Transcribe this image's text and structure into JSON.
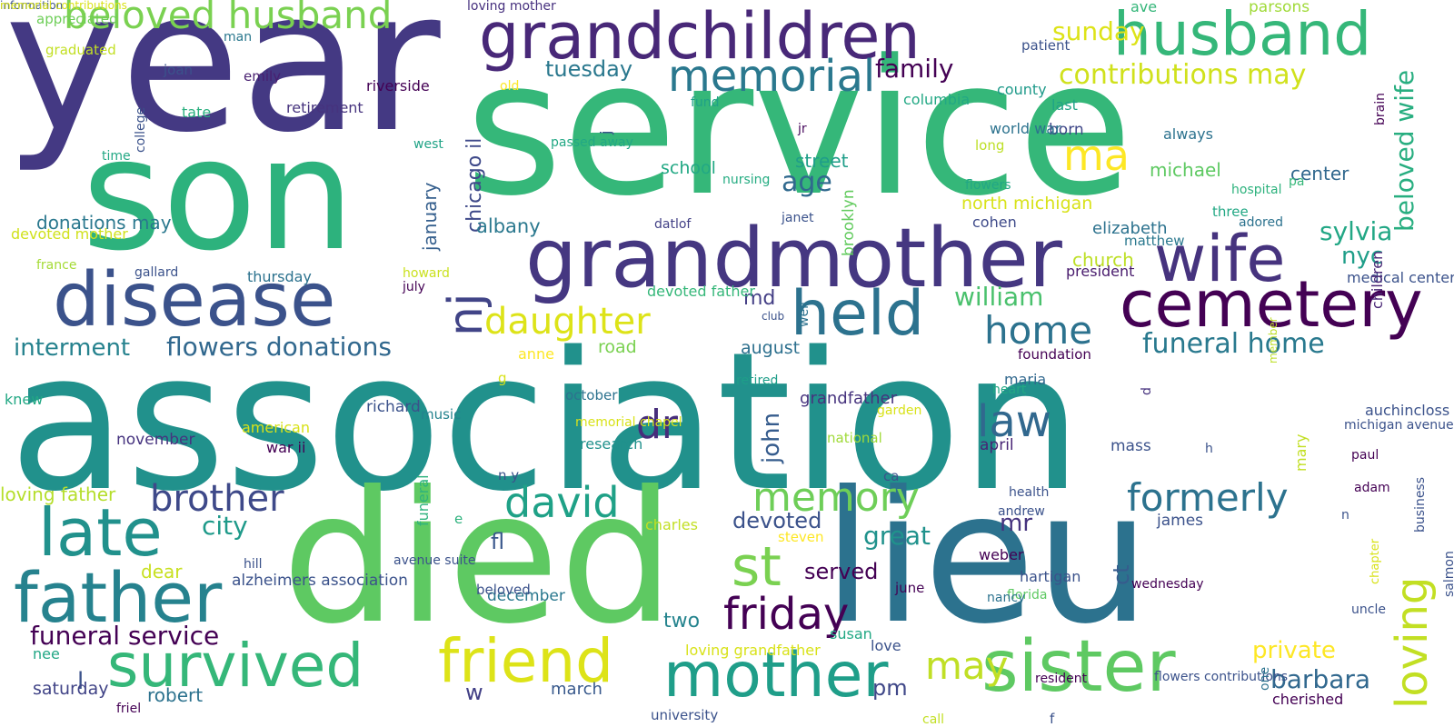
{
  "title": "Word cloud",
  "words": [
    {
      "text": "year",
      "color": "#443983"
    },
    {
      "text": "service",
      "color": "#35b779"
    },
    {
      "text": "association",
      "color": "#21918c"
    },
    {
      "text": "son",
      "color": "#2db27d"
    },
    {
      "text": "died",
      "color": "#5ec962"
    },
    {
      "text": "lieu",
      "color": "#2c728e"
    },
    {
      "text": "grandchildren",
      "color": "#482878"
    },
    {
      "text": "husband",
      "color": "#35b779"
    },
    {
      "text": "grandmother",
      "color": "#453781"
    },
    {
      "text": "disease",
      "color": "#3b528b"
    },
    {
      "text": "wife",
      "color": "#46337e"
    },
    {
      "text": "cemetery",
      "color": "#440154"
    },
    {
      "text": "held",
      "color": "#2c728e"
    },
    {
      "text": "nj",
      "color": "#414487"
    },
    {
      "text": "beloved husband",
      "color": "#7ad151"
    },
    {
      "text": "memorial",
      "color": "#2a788e"
    },
    {
      "text": "contributions may",
      "color": "#d0e11c"
    },
    {
      "text": "beloved wife",
      "color": "#28ae80"
    },
    {
      "text": "daughter",
      "color": "#dde318"
    },
    {
      "text": "late",
      "color": "#21918c"
    },
    {
      "text": "father",
      "color": "#26828e"
    },
    {
      "text": "survived",
      "color": "#35b779"
    },
    {
      "text": "friend",
      "color": "#dde318"
    },
    {
      "text": "mother",
      "color": "#1f9e89"
    },
    {
      "text": "sister",
      "color": "#5ec962"
    },
    {
      "text": "loving",
      "color": "#c2df23"
    },
    {
      "text": "david",
      "color": "#1fa187"
    },
    {
      "text": "brother",
      "color": "#3e4989"
    },
    {
      "text": "memory",
      "color": "#6ece58"
    },
    {
      "text": "formerly",
      "color": "#2c728e"
    },
    {
      "text": "law",
      "color": "#31688e"
    },
    {
      "text": "home",
      "color": "#2c728e"
    },
    {
      "text": "ma",
      "color": "#fde725"
    },
    {
      "text": "st",
      "color": "#7ad151"
    },
    {
      "text": "friday",
      "color": "#440154"
    },
    {
      "text": "may",
      "color": "#c0df25"
    },
    {
      "text": "dr",
      "color": "#472d7b"
    },
    {
      "text": "funeral home",
      "color": "#29798e"
    },
    {
      "text": "william",
      "color": "#4ac16d"
    },
    {
      "text": "flowers donations",
      "color": "#31688e"
    },
    {
      "text": "interment",
      "color": "#26828e"
    },
    {
      "text": "funeral service",
      "color": "#440154"
    },
    {
      "text": "family",
      "color": "#440154"
    },
    {
      "text": "tuesday",
      "color": "#2a788e"
    },
    {
      "text": "sunday",
      "color": "#dde318"
    },
    {
      "text": "chicago il",
      "color": "#3e4989"
    },
    {
      "text": "january",
      "color": "#355f8d"
    },
    {
      "text": "john",
      "color": "#365c8d"
    },
    {
      "text": "sylvia",
      "color": "#22a785"
    },
    {
      "text": "nyc",
      "color": "#1f9e89"
    },
    {
      "text": "age",
      "color": "#30698e"
    },
    {
      "text": "street",
      "color": "#1f9e89"
    },
    {
      "text": "michael",
      "color": "#5ec962"
    },
    {
      "text": "center",
      "color": "#31688e"
    },
    {
      "text": "church",
      "color": "#bddf26"
    },
    {
      "text": "elizabeth",
      "color": "#2c728e"
    },
    {
      "text": "md",
      "color": "#433e85"
    },
    {
      "text": "mr",
      "color": "#46337f"
    },
    {
      "text": "city",
      "color": "#1f9a8a"
    },
    {
      "text": "fl",
      "color": "#39568c"
    },
    {
      "text": "great",
      "color": "#20928c"
    },
    {
      "text": "devoted",
      "color": "#3b528b"
    },
    {
      "text": "served",
      "color": "#440154"
    },
    {
      "text": "ct",
      "color": "#365c8d"
    },
    {
      "text": "two",
      "color": "#25848e"
    },
    {
      "text": "l",
      "color": "#3b528b"
    },
    {
      "text": "w",
      "color": "#424086"
    },
    {
      "text": "pm",
      "color": "#3f4788"
    },
    {
      "text": "barbara",
      "color": "#31688e"
    },
    {
      "text": "private",
      "color": "#fde725"
    },
    {
      "text": "dear",
      "color": "#c8e020"
    },
    {
      "text": "robert",
      "color": "#2c728e"
    },
    {
      "text": "loving father",
      "color": "#b5de2b"
    },
    {
      "text": "alzheimers association",
      "color": "#3b528b"
    },
    {
      "text": "donations may",
      "color": "#2a788e"
    },
    {
      "text": "albany",
      "color": "#2a788e"
    },
    {
      "text": "school",
      "color": "#22a884"
    },
    {
      "text": "road",
      "color": "#7ad151"
    },
    {
      "text": "august",
      "color": "#2d708e"
    },
    {
      "text": "november",
      "color": "#46337f"
    },
    {
      "text": "grandfather",
      "color": "#46337e"
    },
    {
      "text": "saturday",
      "color": "#414487"
    },
    {
      "text": "nee",
      "color": "#22a785"
    },
    {
      "text": "march",
      "color": "#38598c"
    },
    {
      "text": "december",
      "color": "#2a788e"
    },
    {
      "text": "mass",
      "color": "#3b528b"
    },
    {
      "text": "april",
      "color": "#482475"
    },
    {
      "text": "james",
      "color": "#3b528b"
    },
    {
      "text": "president",
      "color": "#481b6d"
    },
    {
      "text": "foundation",
      "color": "#440154"
    },
    {
      "text": "thursday",
      "color": "#2c728e"
    },
    {
      "text": "devoted mother",
      "color": "#d0e11c"
    },
    {
      "text": "devoted father",
      "color": "#35b779"
    },
    {
      "text": "north michigan",
      "color": "#d8e219"
    },
    {
      "text": "brooklyn",
      "color": "#63cb5f"
    },
    {
      "text": "last",
      "color": "#20a386"
    },
    {
      "text": "born",
      "color": "#3f4788"
    },
    {
      "text": "cohen",
      "color": "#3e4a89"
    },
    {
      "text": "matthew",
      "color": "#2a788e"
    },
    {
      "text": "medical center",
      "color": "#3b528b"
    },
    {
      "text": "children",
      "color": "#482575"
    },
    {
      "text": "parsons",
      "color": "#a0da39"
    },
    {
      "text": "ave",
      "color": "#34b679"
    },
    {
      "text": "loving mother",
      "color": "#46307e"
    },
    {
      "text": "appreciated",
      "color": "#6ece58"
    },
    {
      "text": "graduated",
      "color": "#c2df23"
    },
    {
      "text": "man",
      "color": "#2a788e"
    },
    {
      "text": "joan",
      "color": "#3b528b"
    },
    {
      "text": "emily",
      "color": "#481f70"
    },
    {
      "text": "tate",
      "color": "#2ab07f"
    },
    {
      "text": "retirement",
      "color": "#46337e"
    },
    {
      "text": "college",
      "color": "#3b528b"
    },
    {
      "text": "time",
      "color": "#22a884"
    },
    {
      "text": "west",
      "color": "#20a386"
    },
    {
      "text": "riverside",
      "color": "#440154"
    },
    {
      "text": "old",
      "color": "#fde725"
    },
    {
      "text": "j",
      "color": "#3b528b"
    },
    {
      "text": "passed away",
      "color": "#22a884"
    },
    {
      "text": "fund",
      "color": "#1fa187"
    },
    {
      "text": "jr",
      "color": "#46085c"
    },
    {
      "text": "nursing",
      "color": "#25ac82"
    },
    {
      "text": "datlof",
      "color": "#424086"
    },
    {
      "text": "janet",
      "color": "#3b528b"
    },
    {
      "text": "columbia",
      "color": "#22a884"
    },
    {
      "text": "patient",
      "color": "#3b528b"
    },
    {
      "text": "county",
      "color": "#1f9a8a"
    },
    {
      "text": "world war",
      "color": "#2c728e"
    },
    {
      "text": "long",
      "color": "#bddf26"
    },
    {
      "text": "flowers",
      "color": "#22a785"
    },
    {
      "text": "always",
      "color": "#2c728e"
    },
    {
      "text": "hospital",
      "color": "#2db27d"
    },
    {
      "text": "pa",
      "color": "#35b779"
    },
    {
      "text": "three",
      "color": "#22a884"
    },
    {
      "text": "adored",
      "color": "#2c728e"
    },
    {
      "text": "brain",
      "color": "#440154"
    },
    {
      "text": "gallard",
      "color": "#3b528b"
    },
    {
      "text": "france",
      "color": "#a5db36"
    },
    {
      "text": "howard",
      "color": "#cae11f"
    },
    {
      "text": "july",
      "color": "#440154"
    },
    {
      "text": "club",
      "color": "#3b528b"
    },
    {
      "text": "well",
      "color": "#2c728e"
    },
    {
      "text": "anne",
      "color": "#fde725"
    },
    {
      "text": "g",
      "color": "#d8e219"
    },
    {
      "text": "october",
      "color": "#2c728e"
    },
    {
      "text": "music",
      "color": "#25838e"
    },
    {
      "text": "memorial chapel",
      "color": "#d8e219"
    },
    {
      "text": "research",
      "color": "#21918c"
    },
    {
      "text": "retired",
      "color": "#1f9e89"
    },
    {
      "text": "maria",
      "color": "#31688e"
    },
    {
      "text": "heart",
      "color": "#22a884"
    },
    {
      "text": "d",
      "color": "#46327e"
    },
    {
      "text": "member",
      "color": "#bddf26"
    },
    {
      "text": "garden",
      "color": "#d8e219"
    },
    {
      "text": "knew",
      "color": "#22a884"
    },
    {
      "text": "american",
      "color": "#d8e219"
    },
    {
      "text": "war ii",
      "color": "#440154"
    },
    {
      "text": "richard",
      "color": "#3b528b"
    },
    {
      "text": "national",
      "color": "#a0da39"
    },
    {
      "text": "n y",
      "color": "#3b528b"
    },
    {
      "text": "ca",
      "color": "#3b528b"
    },
    {
      "text": "mary",
      "color": "#c2df23"
    },
    {
      "text": "business",
      "color": "#3b528b"
    },
    {
      "text": "auchincloss",
      "color": "#3b528b"
    },
    {
      "text": "michigan avenue",
      "color": "#3b528b"
    },
    {
      "text": "h",
      "color": "#3b528b"
    },
    {
      "text": "paul",
      "color": "#440154"
    },
    {
      "text": "adam",
      "color": "#440154"
    },
    {
      "text": "n",
      "color": "#3b528b"
    },
    {
      "text": "health",
      "color": "#3b528b"
    },
    {
      "text": "andrew",
      "color": "#3b528b"
    },
    {
      "text": "weber",
      "color": "#440154"
    },
    {
      "text": "hartigan",
      "color": "#3b528b"
    },
    {
      "text": "florida",
      "color": "#5ec962"
    },
    {
      "text": "nancy",
      "color": "#2c728e"
    },
    {
      "text": "wednesday",
      "color": "#440154"
    },
    {
      "text": "charles",
      "color": "#c2df23"
    },
    {
      "text": "e",
      "color": "#2db27d"
    },
    {
      "text": "steven",
      "color": "#fde725"
    },
    {
      "text": "funeral",
      "color": "#2db27d"
    },
    {
      "text": "avenue suite",
      "color": "#3b528b"
    },
    {
      "text": "beloved",
      "color": "#3b528b"
    },
    {
      "text": "june",
      "color": "#440154"
    },
    {
      "text": "hill",
      "color": "#3b528b"
    },
    {
      "text": "chapter",
      "color": "#d8e219"
    },
    {
      "text": "uncle",
      "color": "#3b528b"
    },
    {
      "text": "salmon",
      "color": "#3b528b"
    },
    {
      "text": "susan",
      "color": "#22a884"
    },
    {
      "text": "loving grandfather",
      "color": "#d8e219"
    },
    {
      "text": "love",
      "color": "#3b528b"
    },
    {
      "text": "resident",
      "color": "#440154"
    },
    {
      "text": "flowers contributions",
      "color": "#3b528b"
    },
    {
      "text": "one",
      "color": "#2c728e"
    },
    {
      "text": "cherished",
      "color": "#440154"
    },
    {
      "text": "friel",
      "color": "#440154"
    },
    {
      "text": "university",
      "color": "#3b528b"
    },
    {
      "text": "call",
      "color": "#c2df23"
    },
    {
      "text": "f",
      "color": "#3b528b"
    },
    {
      "text": "information",
      "color": "#3b528b"
    },
    {
      "text": "memorial contributions",
      "color": "#d8e219"
    }
  ]
}
